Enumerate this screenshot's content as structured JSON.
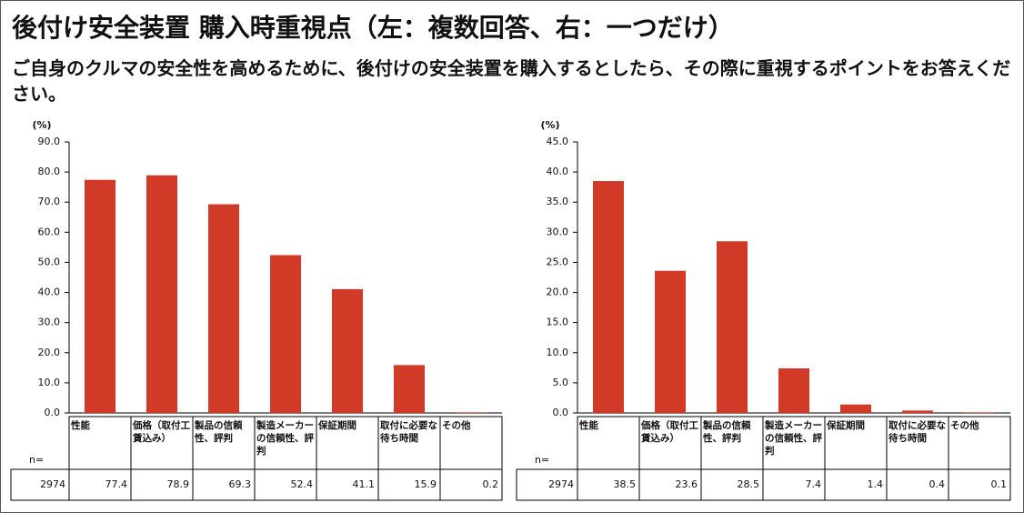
{
  "header": {
    "title": "後付け安全装置 購入時重視点（左：複数回答、右：一つだけ）",
    "subtitle": "ご自身のクルマの安全性を高めるために、後付けの安全装置を購入するとしたら、その際に重視するポイントをお答えください。"
  },
  "chart_data": [
    {
      "type": "bar",
      "y_label": "(%)",
      "color": "#d03a26",
      "categories": [
        "性能",
        "価格（取付工賃込み）",
        "製品の信頼性、評判",
        "製造メーカーの信頼性、評判",
        "保証期間",
        "取付に必要な待ち時間",
        "その他"
      ],
      "values": [
        77.4,
        78.9,
        69.3,
        52.4,
        41.1,
        15.9,
        0.2
      ],
      "ylim": [
        0,
        90
      ],
      "yticks": [
        {
          "value": 0,
          "label": "0.0"
        },
        {
          "value": 10,
          "label": "10.0"
        },
        {
          "value": 20,
          "label": "20.0"
        },
        {
          "value": 30,
          "label": "30.0"
        },
        {
          "value": 40,
          "label": "40.0"
        },
        {
          "value": 50,
          "label": "50.0"
        },
        {
          "value": 60,
          "label": "60.0"
        },
        {
          "value": 70,
          "label": "70.0"
        },
        {
          "value": 80,
          "label": "80.0"
        },
        {
          "value": 90,
          "label": "90.0"
        }
      ],
      "n_label": "n=",
      "n": 2974
    },
    {
      "type": "bar",
      "y_label": "(%)",
      "color": "#d03a26",
      "categories": [
        "性能",
        "価格（取付工賃込み）",
        "製品の信頼性、評判",
        "製造メーカーの信頼性、評判",
        "保証期間",
        "取付に必要な待ち時間",
        "その他"
      ],
      "values": [
        38.5,
        23.6,
        28.5,
        7.4,
        1.4,
        0.4,
        0.1
      ],
      "ylim": [
        0,
        45
      ],
      "yticks": [
        {
          "value": 0,
          "label": "0.0"
        },
        {
          "value": 5,
          "label": "5.0"
        },
        {
          "value": 10,
          "label": "10.0"
        },
        {
          "value": 15,
          "label": "15.0"
        },
        {
          "value": 20,
          "label": "20.0"
        },
        {
          "value": 25,
          "label": "25.0"
        },
        {
          "value": 30,
          "label": "30.0"
        },
        {
          "value": 35,
          "label": "35.0"
        },
        {
          "value": 40,
          "label": "40.0"
        },
        {
          "value": 45,
          "label": "45.0"
        }
      ],
      "n_label": "n=",
      "n": 2974
    }
  ]
}
